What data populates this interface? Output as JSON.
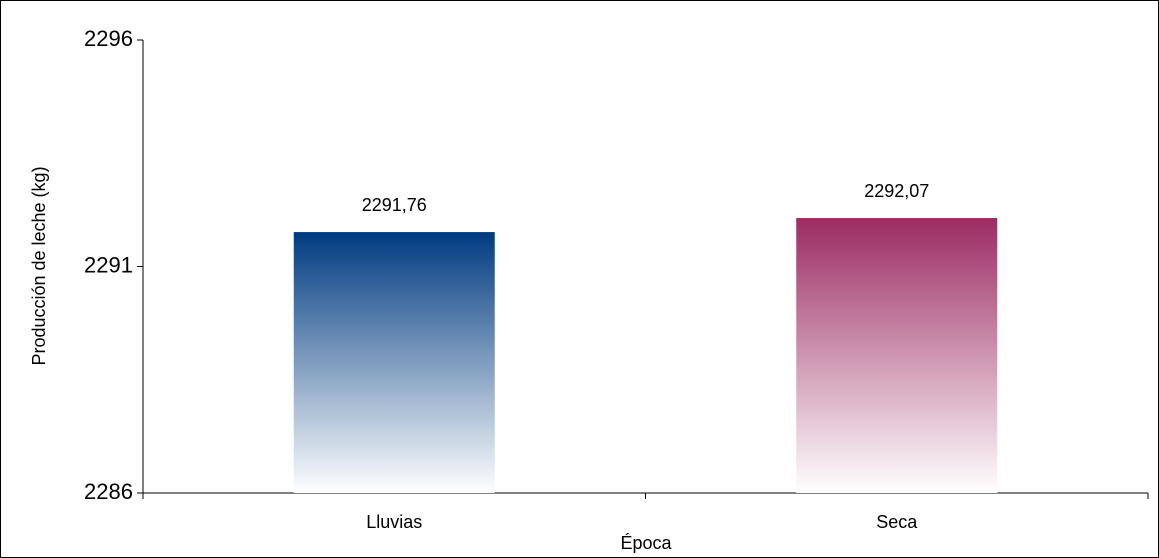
{
  "chart_data": {
    "type": "bar",
    "x_label": "Época",
    "y_label": "Producción de leche (kg)",
    "categories": [
      "Lluvias",
      "Seca"
    ],
    "values": [
      2291.76,
      2292.07
    ],
    "value_labels": [
      "2291,76",
      "2292,07"
    ],
    "colors": [
      "#003b80",
      "#9b2c62"
    ],
    "ylim": [
      2286,
      2296
    ],
    "yticks": [
      2286,
      2291,
      2296
    ]
  }
}
